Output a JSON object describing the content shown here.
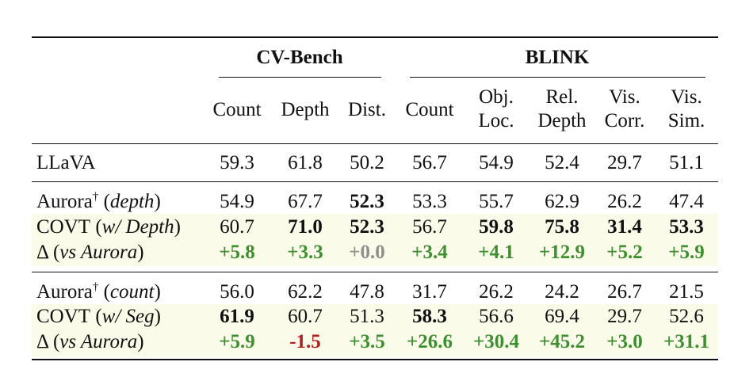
{
  "groups": {
    "cvbench": "CV-Bench",
    "blink": "BLINK"
  },
  "columns": [
    {
      "line1": "Count",
      "line2": ""
    },
    {
      "line1": "Depth",
      "line2": ""
    },
    {
      "line1": "Dist.",
      "line2": ""
    },
    {
      "line1": "Count",
      "line2": ""
    },
    {
      "line1": "Obj.",
      "line2": "Loc."
    },
    {
      "line1": "Rel.",
      "line2": "Depth"
    },
    {
      "line1": "Vis.",
      "line2": "Corr."
    },
    {
      "line1": "Vis.",
      "line2": "Sim."
    }
  ],
  "rows": [
    {
      "label": "LLaVA",
      "values": [
        "59.3",
        "61.8",
        "50.2",
        "56.7",
        "54.9",
        "52.4",
        "29.7",
        "51.1"
      ]
    },
    {
      "label_main": "Aurora",
      "label_sup": "†",
      "label_paren": "depth",
      "values": [
        "54.9",
        "67.7",
        "52.3",
        "53.3",
        "55.7",
        "62.9",
        "26.2",
        "47.4"
      ]
    },
    {
      "label_main": "COVT",
      "label_paren": "w/ Depth",
      "values": [
        "60.7",
        "71.0",
        "52.3",
        "56.7",
        "59.8",
        "75.8",
        "31.4",
        "53.3"
      ]
    },
    {
      "label_main": "Δ",
      "label_paren": "vs Aurora",
      "values": [
        "+5.8",
        "+3.3",
        "+0.0",
        "+3.4",
        "+4.1",
        "+12.9",
        "+5.2",
        "+5.9"
      ]
    },
    {
      "label_main": "Aurora",
      "label_sup": "†",
      "label_paren": "count",
      "values": [
        "56.0",
        "62.2",
        "47.8",
        "31.7",
        "26.2",
        "24.2",
        "26.7",
        "21.5"
      ]
    },
    {
      "label_main": "COVT",
      "label_paren": "w/ Seg",
      "values": [
        "61.9",
        "60.7",
        "51.3",
        "58.3",
        "56.6",
        "69.4",
        "29.7",
        "52.6"
      ]
    },
    {
      "label_main": "Δ",
      "label_paren": "vs Aurora",
      "values": [
        "+5.9",
        "-1.5",
        "+3.5",
        "+26.6",
        "+30.4",
        "+45.2",
        "+3.0",
        "+31.1"
      ]
    }
  ],
  "colors": {
    "positive": "#3d8f2f",
    "negative": "#b01e1e",
    "zero": "#8f8f8f",
    "highlight": "#fbfbe9"
  }
}
